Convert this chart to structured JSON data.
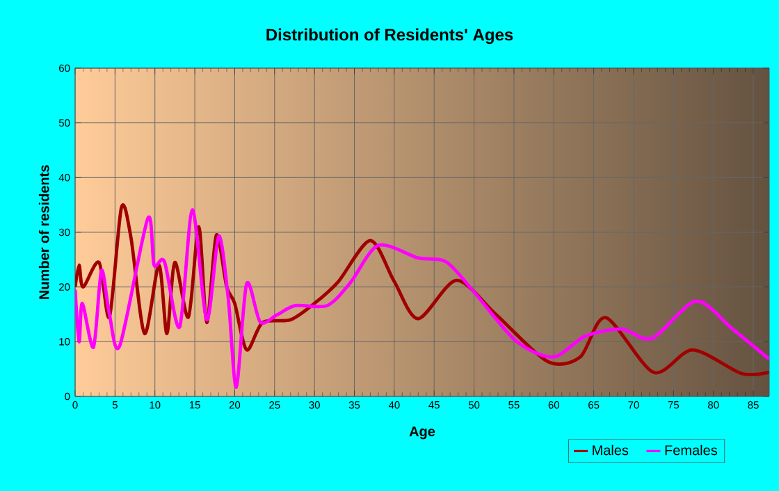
{
  "chart_data": {
    "type": "line",
    "title": "Distribution of Residents' Ages",
    "xlabel": "Age",
    "ylabel": "Number of residents",
    "xlim": [
      0,
      87
    ],
    "ylim": [
      0,
      60
    ],
    "xticks": [
      0,
      5,
      10,
      15,
      20,
      25,
      30,
      35,
      40,
      45,
      50,
      55,
      60,
      65,
      70,
      75,
      80,
      85
    ],
    "yticks": [
      0,
      10,
      20,
      30,
      40,
      50,
      60
    ],
    "grid": true,
    "legend": "bottom right",
    "line_style": "solid",
    "marker": "none",
    "series": [
      {
        "name": "Males",
        "color": "#a00000",
        "x": [
          0,
          0.5,
          1,
          3,
          4.3,
          5.8,
          7,
          8.7,
          10.5,
          11.5,
          12.5,
          14.2,
          15.5,
          16.5,
          17.7,
          19,
          20,
          21.5,
          23.5,
          27,
          30,
          33,
          37,
          40,
          43,
          47.8,
          52.8,
          59.2,
          63.3,
          66.5,
          72.5,
          77.4,
          83.5,
          87
        ],
        "values": [
          20,
          24,
          20,
          24.5,
          14.5,
          34.5,
          29,
          11.5,
          24,
          11.5,
          24.5,
          14.5,
          31,
          13.5,
          29.5,
          20,
          17,
          8.5,
          13.5,
          14,
          17,
          21,
          28.5,
          21,
          14.2,
          21.2,
          14.9,
          6.4,
          7.2,
          14.4,
          4.4,
          8.5,
          4.2,
          4.4
        ]
      },
      {
        "name": "Females",
        "color": "#ff00ff",
        "x": [
          0,
          0.5,
          0.9,
          2.3,
          3.3,
          4.3,
          5.6,
          9.1,
          9.9,
          11.2,
          13.1,
          14.7,
          16.5,
          18,
          19.2,
          20.2,
          21.5,
          23.2,
          25.3,
          27.6,
          31.6,
          34.5,
          38,
          43,
          46.5,
          50,
          55.2,
          59.9,
          63.9,
          68.5,
          72.3,
          77.8,
          82.4,
          87
        ],
        "values": [
          19.5,
          10,
          17,
          9,
          23,
          15,
          9.3,
          32.5,
          24,
          24.6,
          12.7,
          34.1,
          14,
          29.3,
          17.8,
          1.7,
          20.6,
          13.6,
          14.9,
          16.6,
          16.6,
          20.8,
          27.6,
          25.3,
          24.6,
          19.1,
          10.2,
          7.2,
          11,
          12.3,
          10.6,
          17.4,
          12.3,
          6.8
        ]
      }
    ]
  }
}
